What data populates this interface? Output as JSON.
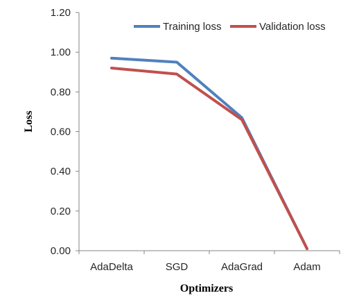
{
  "chart_data": {
    "type": "line",
    "title": "",
    "xlabel": "Optimizers",
    "ylabel": "Loss",
    "categories": [
      "AdaDelta",
      "SGD",
      "AdaGrad",
      "Adam"
    ],
    "ylim": [
      0,
      1.2
    ],
    "yticks": [
      "0.00",
      "0.20",
      "0.40",
      "0.60",
      "0.80",
      "1.00",
      "1.20"
    ],
    "grid": false,
    "legend_position": "top-right",
    "series": [
      {
        "name": "Training loss",
        "color": "#4F81BD",
        "values": [
          0.97,
          0.95,
          0.67,
          0.01
        ]
      },
      {
        "name": "Validation loss",
        "color": "#C0504D",
        "values": [
          0.92,
          0.89,
          0.66,
          0.01
        ]
      }
    ]
  }
}
